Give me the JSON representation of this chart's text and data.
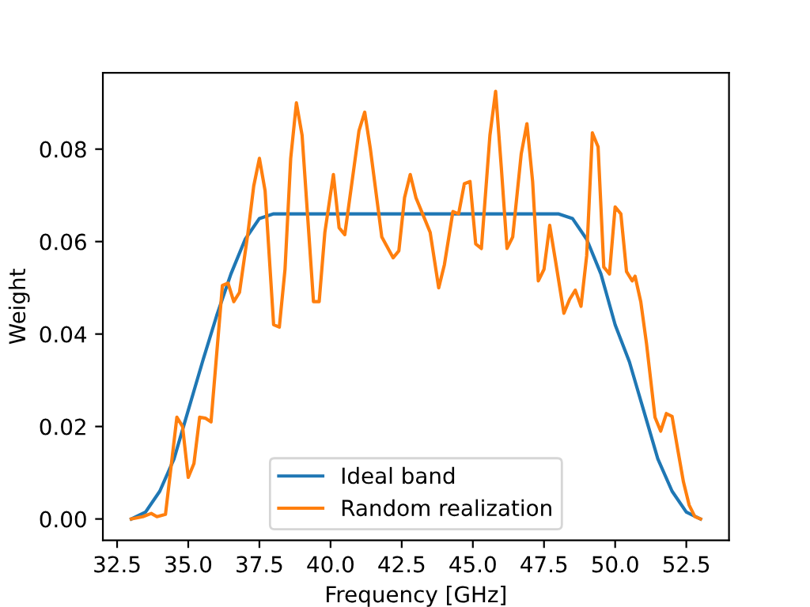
{
  "chart_data": {
    "type": "line",
    "xlabel": "Frequency [GHz]",
    "ylabel": "Weight",
    "xlim": [
      32,
      54
    ],
    "ylim": [
      -0.0046,
      0.0965
    ],
    "xticks": [
      {
        "value": 32.5,
        "label": "32.5"
      },
      {
        "value": 35,
        "label": "35.0"
      },
      {
        "value": 37.5,
        "label": "37.5"
      },
      {
        "value": 40,
        "label": "40.0"
      },
      {
        "value": 42.5,
        "label": "42.5"
      },
      {
        "value": 45,
        "label": "45.0"
      },
      {
        "value": 47.5,
        "label": "47.5"
      },
      {
        "value": 50,
        "label": "50.0"
      },
      {
        "value": 52.5,
        "label": "52.5"
      }
    ],
    "yticks": [
      {
        "value": 0,
        "label": "0.00"
      },
      {
        "value": 0.02,
        "label": "0.02"
      },
      {
        "value": 0.04,
        "label": "0.04"
      },
      {
        "value": 0.06,
        "label": "0.06"
      },
      {
        "value": 0.08,
        "label": "0.08"
      }
    ],
    "legend": "bottom",
    "grid": false,
    "series": [
      {
        "name": "Ideal band",
        "color": "#1f77b4",
        "x": [
          33,
          33.5,
          34,
          34.5,
          35,
          35.5,
          36,
          36.5,
          37,
          37.5,
          38,
          48,
          48.5,
          49,
          49.5,
          50,
          50.5,
          51,
          51.5,
          52,
          52.5,
          53
        ],
        "values": [
          0,
          0.0015,
          0.006,
          0.013,
          0.0235,
          0.034,
          0.044,
          0.053,
          0.0605,
          0.065,
          0.066,
          0.066,
          0.065,
          0.0605,
          0.053,
          0.042,
          0.034,
          0.0235,
          0.013,
          0.006,
          0.0015,
          0
        ]
      },
      {
        "name": "Random realization",
        "color": "#ff7f0e",
        "x": [
          33.0,
          33.4,
          33.7,
          33.9,
          34.2,
          34.6,
          34.8,
          35.0,
          35.2,
          35.4,
          35.6,
          35.8,
          36.2,
          36.4,
          36.6,
          36.8,
          37.1,
          37.3,
          37.5,
          37.7,
          38.0,
          38.2,
          38.4,
          38.6,
          38.8,
          39.0,
          39.4,
          39.6,
          39.8,
          40.1,
          40.3,
          40.5,
          40.8,
          41.0,
          41.2,
          41.4,
          41.8,
          42.2,
          42.4,
          42.6,
          42.8,
          43.0,
          43.3,
          43.5,
          43.8,
          44.0,
          44.3,
          44.5,
          44.7,
          44.9,
          45.1,
          45.3,
          45.6,
          45.8,
          46.0,
          46.2,
          46.4,
          46.7,
          46.9,
          47.1,
          47.3,
          47.5,
          47.7,
          47.9,
          48.2,
          48.4,
          48.6,
          48.8,
          49.0,
          49.2,
          49.4,
          49.6,
          49.8,
          50.0,
          50.2,
          50.4,
          50.6,
          50.7,
          50.9,
          51.1,
          51.4,
          51.6,
          51.8,
          52.0,
          52.2,
          52.4,
          52.6,
          52.8,
          53.0
        ],
        "values": [
          0.0,
          0.0005,
          0.0012,
          0.0005,
          0.001,
          0.022,
          0.02,
          0.009,
          0.012,
          0.022,
          0.0218,
          0.021,
          0.0505,
          0.051,
          0.047,
          0.049,
          0.062,
          0.072,
          0.078,
          0.071,
          0.042,
          0.0415,
          0.054,
          0.078,
          0.09,
          0.083,
          0.047,
          0.047,
          0.062,
          0.0745,
          0.063,
          0.0615,
          0.075,
          0.084,
          0.088,
          0.08,
          0.061,
          0.0565,
          0.058,
          0.0695,
          0.0745,
          0.0695,
          0.065,
          0.062,
          0.05,
          0.055,
          0.0665,
          0.066,
          0.0725,
          0.073,
          0.0595,
          0.0585,
          0.083,
          0.0925,
          0.076,
          0.0585,
          0.061,
          0.079,
          0.0855,
          0.073,
          0.0515,
          0.054,
          0.0635,
          0.056,
          0.0445,
          0.0475,
          0.0495,
          0.046,
          0.057,
          0.0835,
          0.0805,
          0.0545,
          0.053,
          0.0675,
          0.066,
          0.0535,
          0.0515,
          0.0525,
          0.047,
          0.038,
          0.022,
          0.019,
          0.0228,
          0.0222,
          0.015,
          0.008,
          0.003,
          0.0005,
          0.0
        ]
      }
    ]
  }
}
